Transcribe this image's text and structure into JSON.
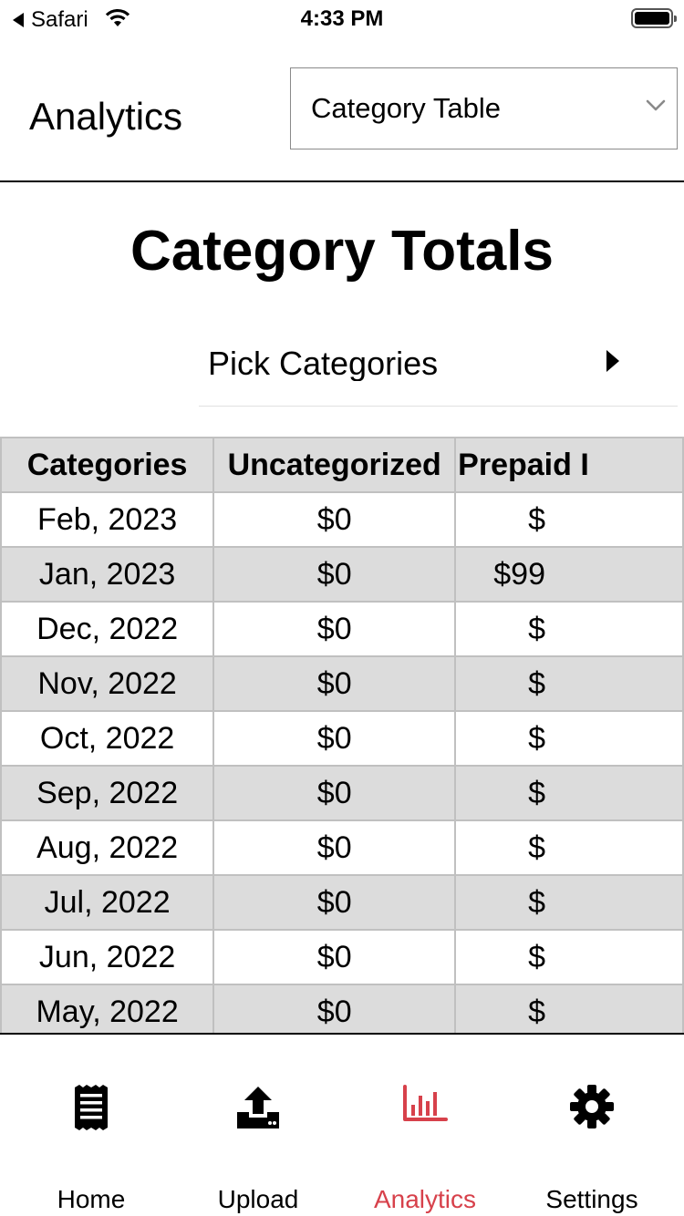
{
  "status_bar": {
    "back_app": "Safari",
    "time": "4:33 PM"
  },
  "header": {
    "title": "Analytics",
    "view_select": {
      "value": "Category Table",
      "icon": "chevron-down-icon"
    }
  },
  "page": {
    "title": "Category Totals",
    "pick_categories_label": "Pick Categories"
  },
  "table": {
    "columns": [
      "Categories",
      "Uncategorized",
      "Prepaid I"
    ],
    "rows": [
      [
        "Feb, 2023",
        "$0",
        "$"
      ],
      [
        "Jan, 2023",
        "$0",
        "$99"
      ],
      [
        "Dec, 2022",
        "$0",
        "$"
      ],
      [
        "Nov, 2022",
        "$0",
        "$"
      ],
      [
        "Oct, 2022",
        "$0",
        "$"
      ],
      [
        "Sep, 2022",
        "$0",
        "$"
      ],
      [
        "Aug, 2022",
        "$0",
        "$"
      ],
      [
        "Jul, 2022",
        "$0",
        "$"
      ],
      [
        "Jun, 2022",
        "$0",
        "$"
      ],
      [
        "May, 2022",
        "$0",
        "$"
      ]
    ]
  },
  "tabbar": {
    "active_color": "#d7414b",
    "tabs": [
      {
        "label": "Home",
        "icon": "receipt-icon"
      },
      {
        "label": "Upload",
        "icon": "upload-icon"
      },
      {
        "label": "Analytics",
        "icon": "bar-chart-icon"
      },
      {
        "label": "Settings",
        "icon": "gear-icon"
      }
    ]
  }
}
